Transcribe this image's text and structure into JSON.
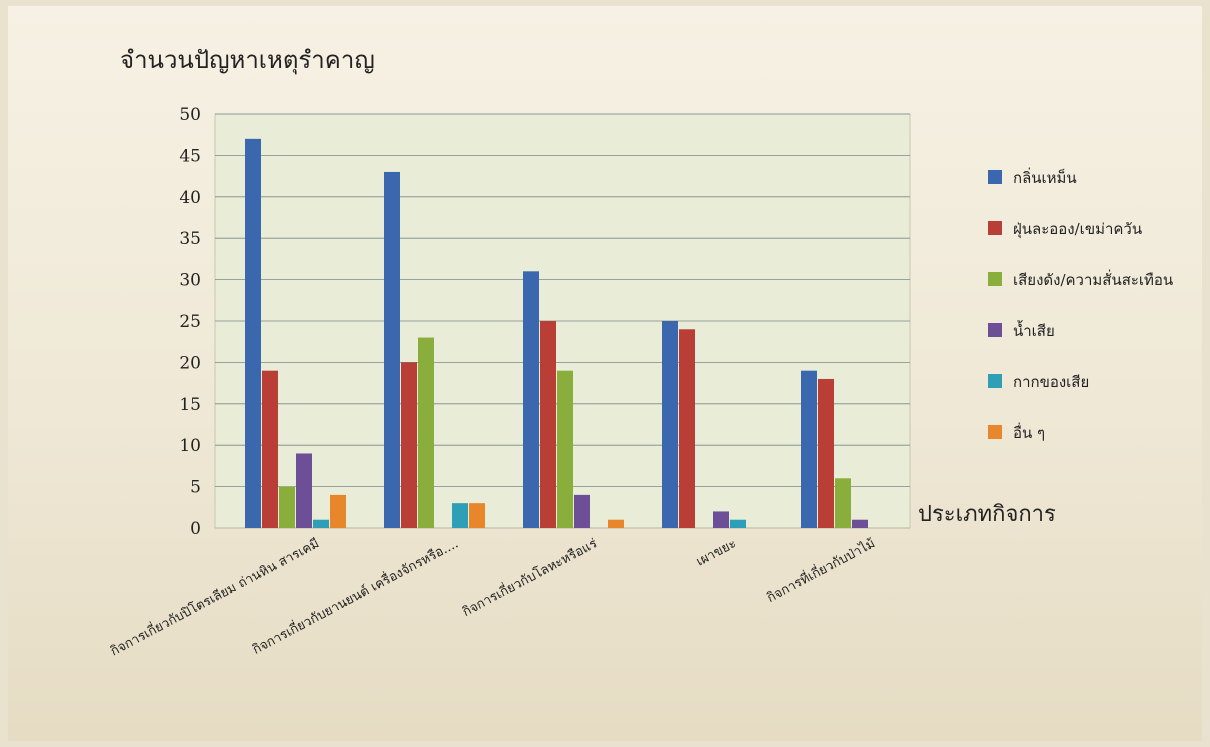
{
  "chart_data": {
    "type": "bar",
    "ylabel": "จำนวนปัญหาเหตุรำคาญ",
    "xlabel": "ประเภทกิจการ",
    "ylim": [
      0,
      50
    ],
    "yticks": [
      0,
      5,
      10,
      15,
      20,
      25,
      30,
      35,
      40,
      45,
      50
    ],
    "grid": true,
    "legend_position": "right",
    "categories": [
      "กิจการเกี่ยวกับปิโตรเลียม ถ่านหิน สารเคมี",
      "กิจการเกี่ยวกับยานยนต์ เครื่องจักรหรือ....",
      "กิจการเกี่ยวกับโลหะหรือแร่",
      "เผาขยะ",
      "กิจการที่เกี่ยวกับป่าไม้"
    ],
    "series": [
      {
        "name": "กลิ่นเหม็น",
        "color": "#3b67ae",
        "values": [
          47,
          43,
          31,
          25,
          19
        ]
      },
      {
        "name": "ฝุ่นละออง/เขม่าควัน",
        "color": "#b83e36",
        "values": [
          19,
          20,
          25,
          24,
          18
        ]
      },
      {
        "name": "เสียงดัง/ความสั่นสะเทือน",
        "color": "#8aae3b",
        "values": [
          5,
          23,
          19,
          0,
          6
        ]
      },
      {
        "name": "น้ำเสีย",
        "color": "#6d4f98",
        "values": [
          9,
          0,
          4,
          2,
          1
        ]
      },
      {
        "name": "กากของเสีย",
        "color": "#2f9fb8",
        "values": [
          1,
          3,
          0,
          1,
          0
        ]
      },
      {
        "name": "อื่น ๆ",
        "color": "#e8862c",
        "values": [
          4,
          3,
          1,
          0,
          0
        ]
      }
    ]
  }
}
